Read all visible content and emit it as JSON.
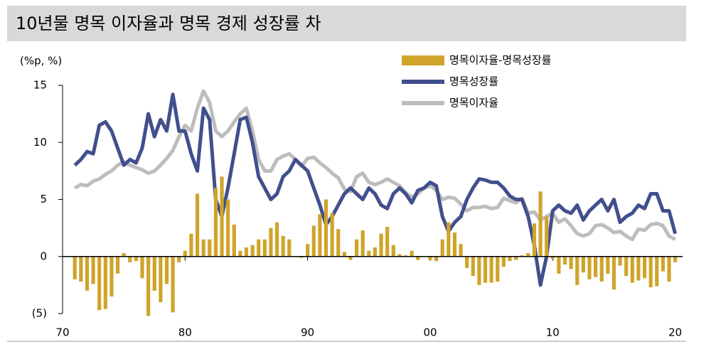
{
  "chart_data": {
    "type": "combo",
    "title": "10년물 명목 이자율과 명목 경제 성장률 차",
    "y_label": "(%p, %)",
    "x": [
      1971,
      1971.5,
      1972,
      1972.5,
      1973,
      1973.5,
      1974,
      1974.5,
      1975,
      1975.5,
      1976,
      1976.5,
      1977,
      1977.5,
      1978,
      1978.5,
      1979,
      1979.5,
      1980,
      1980.5,
      1981,
      1981.5,
      1982,
      1982.5,
      1983,
      1983.5,
      1984,
      1984.5,
      1985,
      1985.5,
      1986,
      1986.5,
      1987,
      1987.5,
      1988,
      1988.5,
      1989,
      1989.5,
      1990,
      1990.5,
      1991,
      1991.5,
      1992,
      1992.5,
      1993,
      1993.5,
      1994,
      1994.5,
      1995,
      1995.5,
      1996,
      1996.5,
      1997,
      1997.5,
      1998,
      1998.5,
      1999,
      1999.5,
      2000,
      2000.5,
      2001,
      2001.5,
      2002,
      2002.5,
      2003,
      2003.5,
      2004,
      2004.5,
      2005,
      2005.5,
      2006,
      2006.5,
      2007,
      2007.5,
      2008,
      2008.5,
      2009,
      2009.5,
      2010,
      2010.5,
      2011,
      2011.5,
      2012,
      2012.5,
      2013,
      2013.5,
      2014,
      2014.5,
      2015,
      2015.5,
      2016,
      2016.5,
      2017,
      2017.5,
      2018,
      2018.5,
      2019,
      2019.5,
      2020
    ],
    "series": [
      {
        "name": "명목이자율-명목성장률",
        "type": "bar",
        "color": "#cfa42a",
        "values": [
          -2,
          -2.2,
          -3,
          -2.4,
          -4.7,
          -4.6,
          -3.5,
          -1.5,
          0.3,
          -0.5,
          -0.4,
          -1.9,
          -5.2,
          -3,
          -4,
          -2.4,
          -4.9,
          -0.5,
          0.5,
          2,
          5.5,
          1.5,
          1.5,
          6,
          7,
          5,
          2.8,
          0.5,
          0.8,
          1,
          1.5,
          1.5,
          2.5,
          3,
          1.8,
          1.5,
          0,
          -0.1,
          1.1,
          2.7,
          3.7,
          5,
          3.8,
          2.4,
          0.4,
          -0.3,
          1.5,
          2.3,
          0.5,
          0.8,
          2,
          2.6,
          1,
          0.2,
          0.1,
          0.5,
          -0.3,
          0,
          -0.3,
          -0.4,
          1.5,
          3,
          2.1,
          1.1,
          -1,
          -1.7,
          -2.5,
          -2.3,
          -2.3,
          -2.2,
          -0.9,
          -0.4,
          -0.3,
          0.1,
          0.3,
          2.9,
          5.7,
          3.5,
          -0.2,
          -1.5,
          -0.7,
          -1.1,
          -2.5,
          -1.4,
          -2,
          -1.8,
          -2.2,
          -1.5,
          -2.9,
          -0.8,
          -1.7,
          -2.3,
          -2.1,
          -1.9,
          -2.7,
          -2.6,
          -1.3,
          -2.2,
          -0.5
        ]
      },
      {
        "name": "명목성장률",
        "type": "line",
        "color": "#414f8d",
        "values": [
          8,
          8.5,
          9.2,
          9,
          11.5,
          11.8,
          11,
          9.5,
          8,
          8.5,
          8.2,
          9.5,
          12.5,
          10.5,
          12,
          11,
          14.2,
          11,
          11,
          9,
          7.5,
          13,
          12,
          5,
          3.5,
          6,
          9,
          12,
          12.2,
          10,
          7,
          6,
          5,
          5.5,
          7,
          7.5,
          8.5,
          8,
          7.5,
          6,
          4.5,
          2.8,
          3.5,
          4.5,
          5.5,
          6,
          5.5,
          5,
          6,
          5.5,
          4.5,
          4.2,
          5.5,
          6,
          5.5,
          4.7,
          5.8,
          6,
          6.5,
          6.2,
          3.5,
          2.2,
          3,
          3.5,
          5,
          6,
          6.8,
          6.7,
          6.5,
          6.5,
          6,
          5.3,
          5,
          5,
          3.5,
          1,
          -2.5,
          0,
          4,
          4.5,
          4,
          3.8,
          4.5,
          3.2,
          4,
          4.5,
          5,
          4,
          5,
          3,
          3.5,
          3.8,
          4.5,
          4.2,
          5.5,
          5.5,
          4,
          4,
          2
        ]
      },
      {
        "name": "명목이자율",
        "type": "line",
        "color": "#bdbdbd",
        "values": [
          6,
          6.3,
          6.2,
          6.6,
          6.8,
          7.2,
          7.5,
          8,
          8.3,
          8,
          7.8,
          7.6,
          7.3,
          7.5,
          8,
          8.6,
          9.3,
          10.5,
          11.5,
          11,
          13,
          14.5,
          13.5,
          11,
          10.5,
          11,
          11.8,
          12.5,
          13,
          11,
          8.5,
          7.5,
          7.5,
          8.5,
          8.8,
          9,
          8.5,
          7.9,
          8.6,
          8.7,
          8.2,
          7.8,
          7.3,
          6.9,
          5.9,
          5.7,
          7,
          7.3,
          6.5,
          6.3,
          6.5,
          6.8,
          6.5,
          6.2,
          5.6,
          5.2,
          5.5,
          6,
          6.2,
          5.8,
          5,
          5.2,
          5.1,
          4.6,
          4,
          4.3,
          4.3,
          4.4,
          4.2,
          4.3,
          5.1,
          4.9,
          4.7,
          5.1,
          3.8,
          3.9,
          3.2,
          3.5,
          3.8,
          3,
          3.3,
          2.7,
          2,
          1.8,
          2,
          2.7,
          2.8,
          2.5,
          2.1,
          2.2,
          1.8,
          1.5,
          2.4,
          2.3,
          2.8,
          2.9,
          2.7,
          1.8,
          1.5
        ]
      }
    ],
    "xlim": [
      1970,
      2020.6
    ],
    "xticks": [
      {
        "value": 1970,
        "label": "70"
      },
      {
        "value": 1980,
        "label": "80"
      },
      {
        "value": 1990,
        "label": "90"
      },
      {
        "value": 2000,
        "label": "00"
      },
      {
        "value": 2010,
        "label": "10"
      },
      {
        "value": 2020,
        "label": "20"
      }
    ],
    "ylim": [
      -5,
      15
    ],
    "yticks": [
      15,
      10,
      5,
      0,
      {
        "value": -5,
        "label": "(5)"
      }
    ],
    "legend": "top-right"
  }
}
